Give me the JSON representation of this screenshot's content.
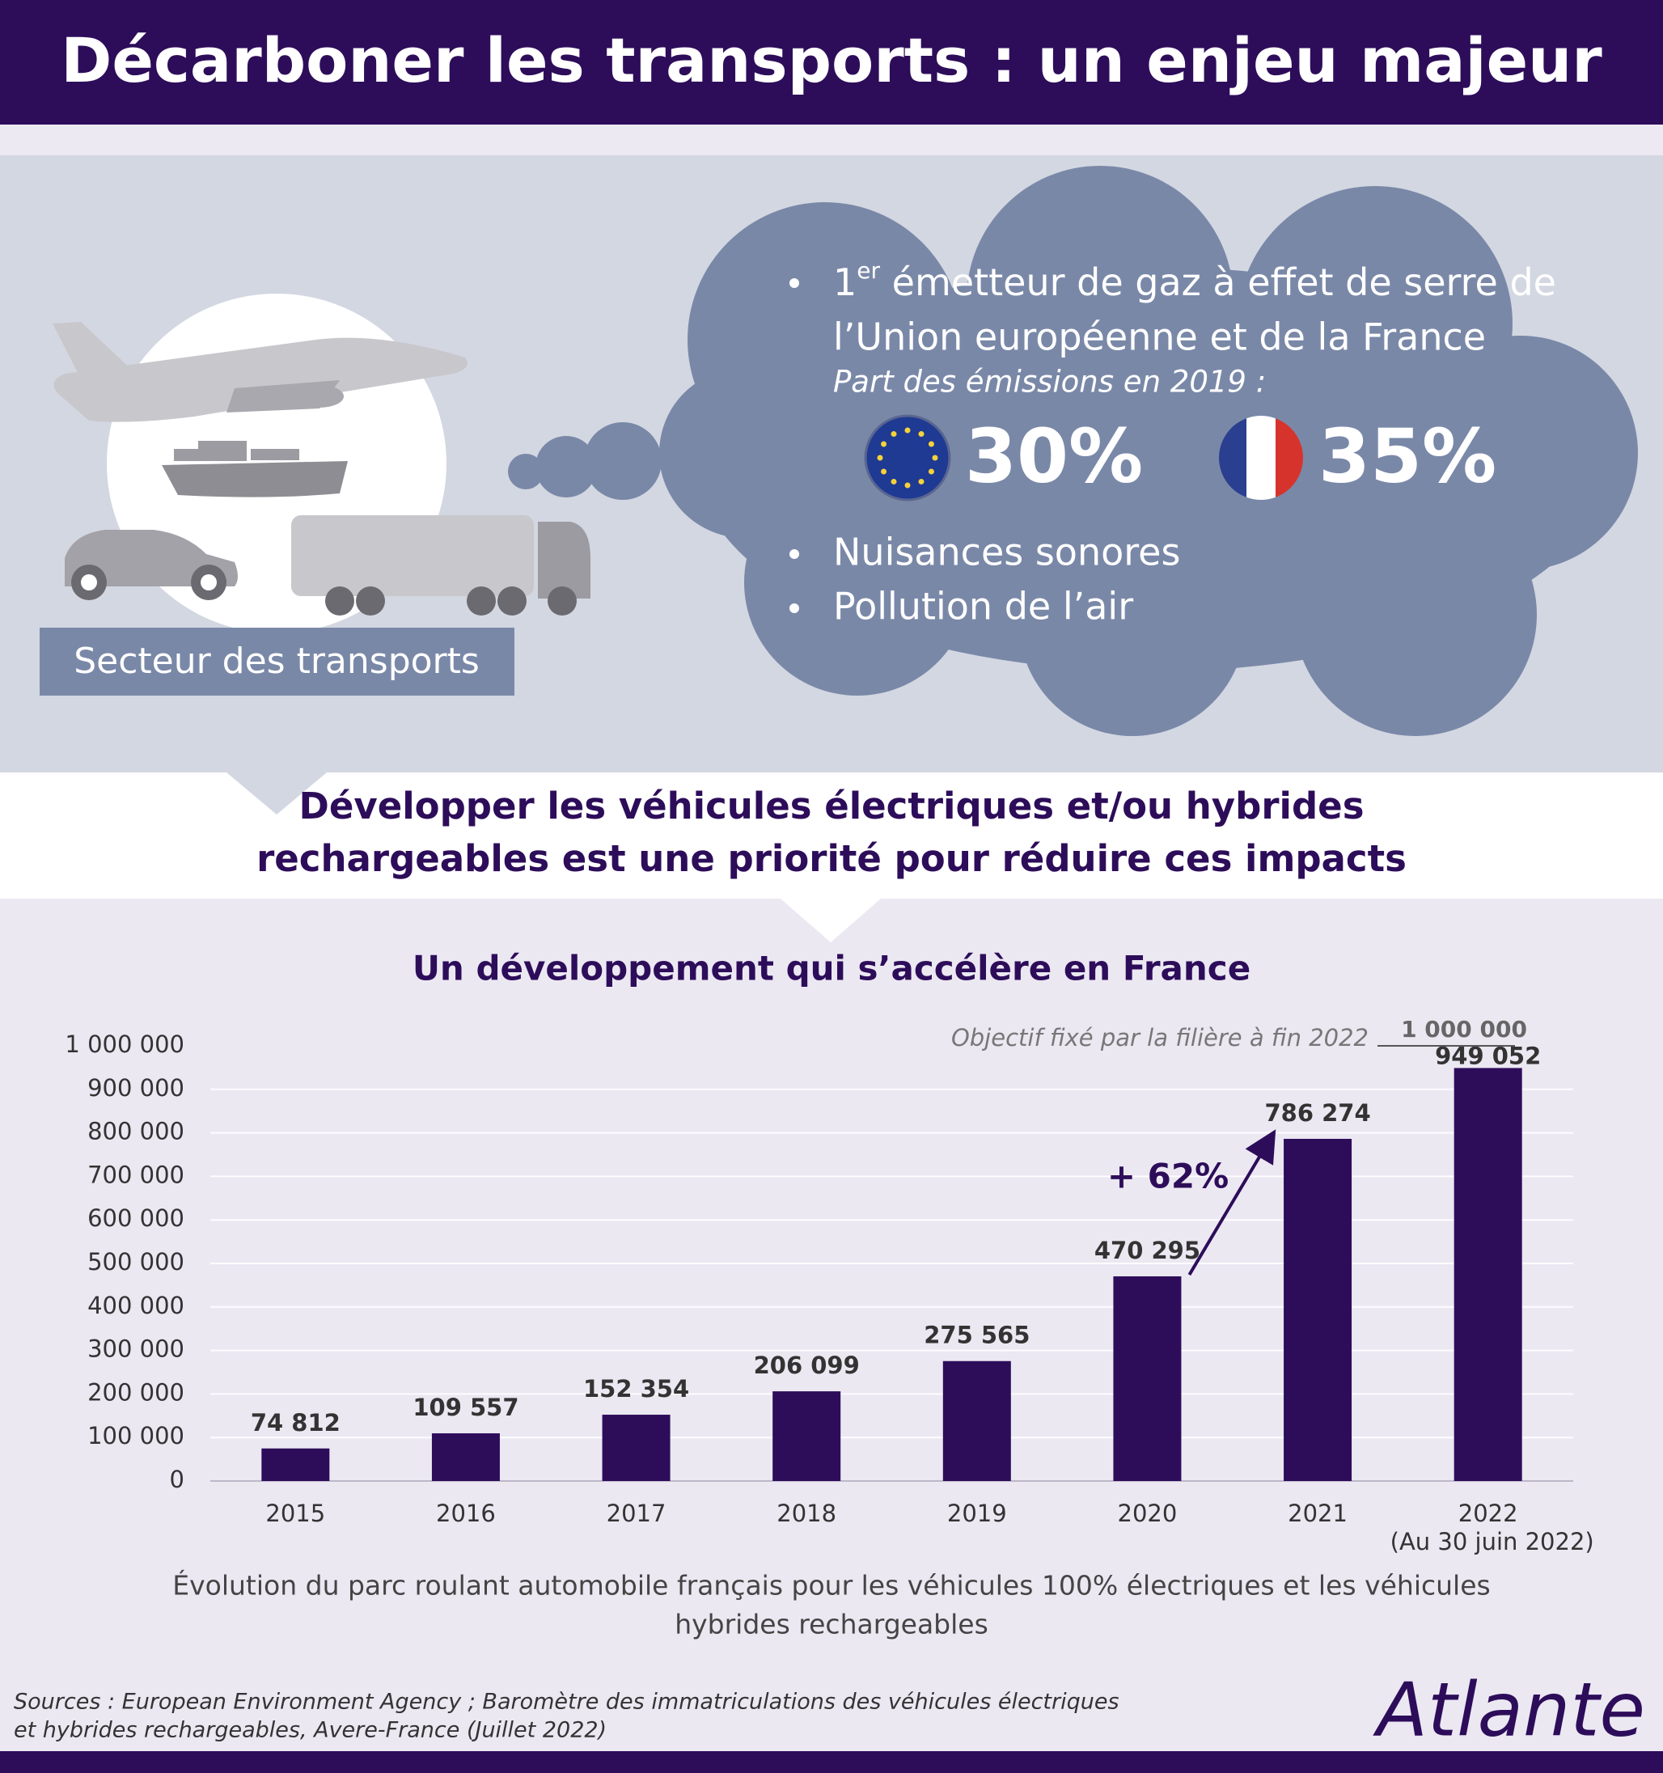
{
  "header": {
    "title": "Décarboner les transports : un enjeu majeur"
  },
  "info": {
    "sector_label": "Secteur des transports",
    "bullet_1": {
      "number": "1",
      "superscript": "er",
      "line_1": " émetteur de gaz à effet de serre de",
      "line_2": "l’Union européenne et de la France"
    },
    "subtitle": "Part des émissions en 2019 :",
    "eu_share": "30%",
    "france_share": "35%",
    "bullet_2": "Nuisances sonores",
    "bullet_3": "Pollution de l’air"
  },
  "banner": {
    "line_1": "Développer les véhicules électriques et/ou hybrides",
    "line_2": "rechargeables est une priorité pour réduire ces impacts"
  },
  "chart_data": {
    "type": "bar",
    "title": "Un développement qui s’accélère en France",
    "categories": [
      "2015",
      "2016",
      "2017",
      "2018",
      "2019",
      "2020",
      "2021",
      "2022"
    ],
    "category_note": "(Au 30 juin 2022)",
    "values": [
      74812,
      109557,
      152354,
      206099,
      275565,
      470295,
      786274,
      949052
    ],
    "value_labels": [
      "74 812",
      "109 557",
      "152 354",
      "206 099",
      "275 565",
      "470 295",
      "786 274",
      "949 052"
    ],
    "color": "#2d0d5a",
    "ylim": [
      0,
      1000000
    ],
    "yticks": [
      0,
      {
        "value": 100000,
        "label": "100 000"
      },
      {
        "value": 200000,
        "label": "200 000"
      },
      {
        "value": 300000,
        "label": "300 000"
      },
      {
        "value": 400000,
        "label": "400 000"
      },
      {
        "value": 500000,
        "label": "500 000"
      },
      {
        "value": 600000,
        "label": "600 000"
      },
      {
        "value": 700000,
        "label": "700 000"
      },
      {
        "value": 800000,
        "label": "800 000"
      },
      {
        "value": 900000,
        "label": "900 000"
      },
      {
        "value": 1000000,
        "label": "1 000 000"
      }
    ],
    "grid": true,
    "target": {
      "value": 1000000,
      "label": "1 000 000",
      "text": "Objectif fixé par la filière à fin 2022"
    },
    "growth_label": "+ 62%",
    "caption": [
      "Évolution du parc roulant automobile français pour les véhicules 100% électriques et les véhicules",
      "hybrides rechargeables"
    ]
  },
  "footer": {
    "sources": [
      "Sources :  European Environment Agency ; Baromètre des immatriculations des véhicules électriques",
      "et hybrides rechargeables, Avere-France (Juillet 2022)"
    ],
    "logo": "Atlante"
  }
}
